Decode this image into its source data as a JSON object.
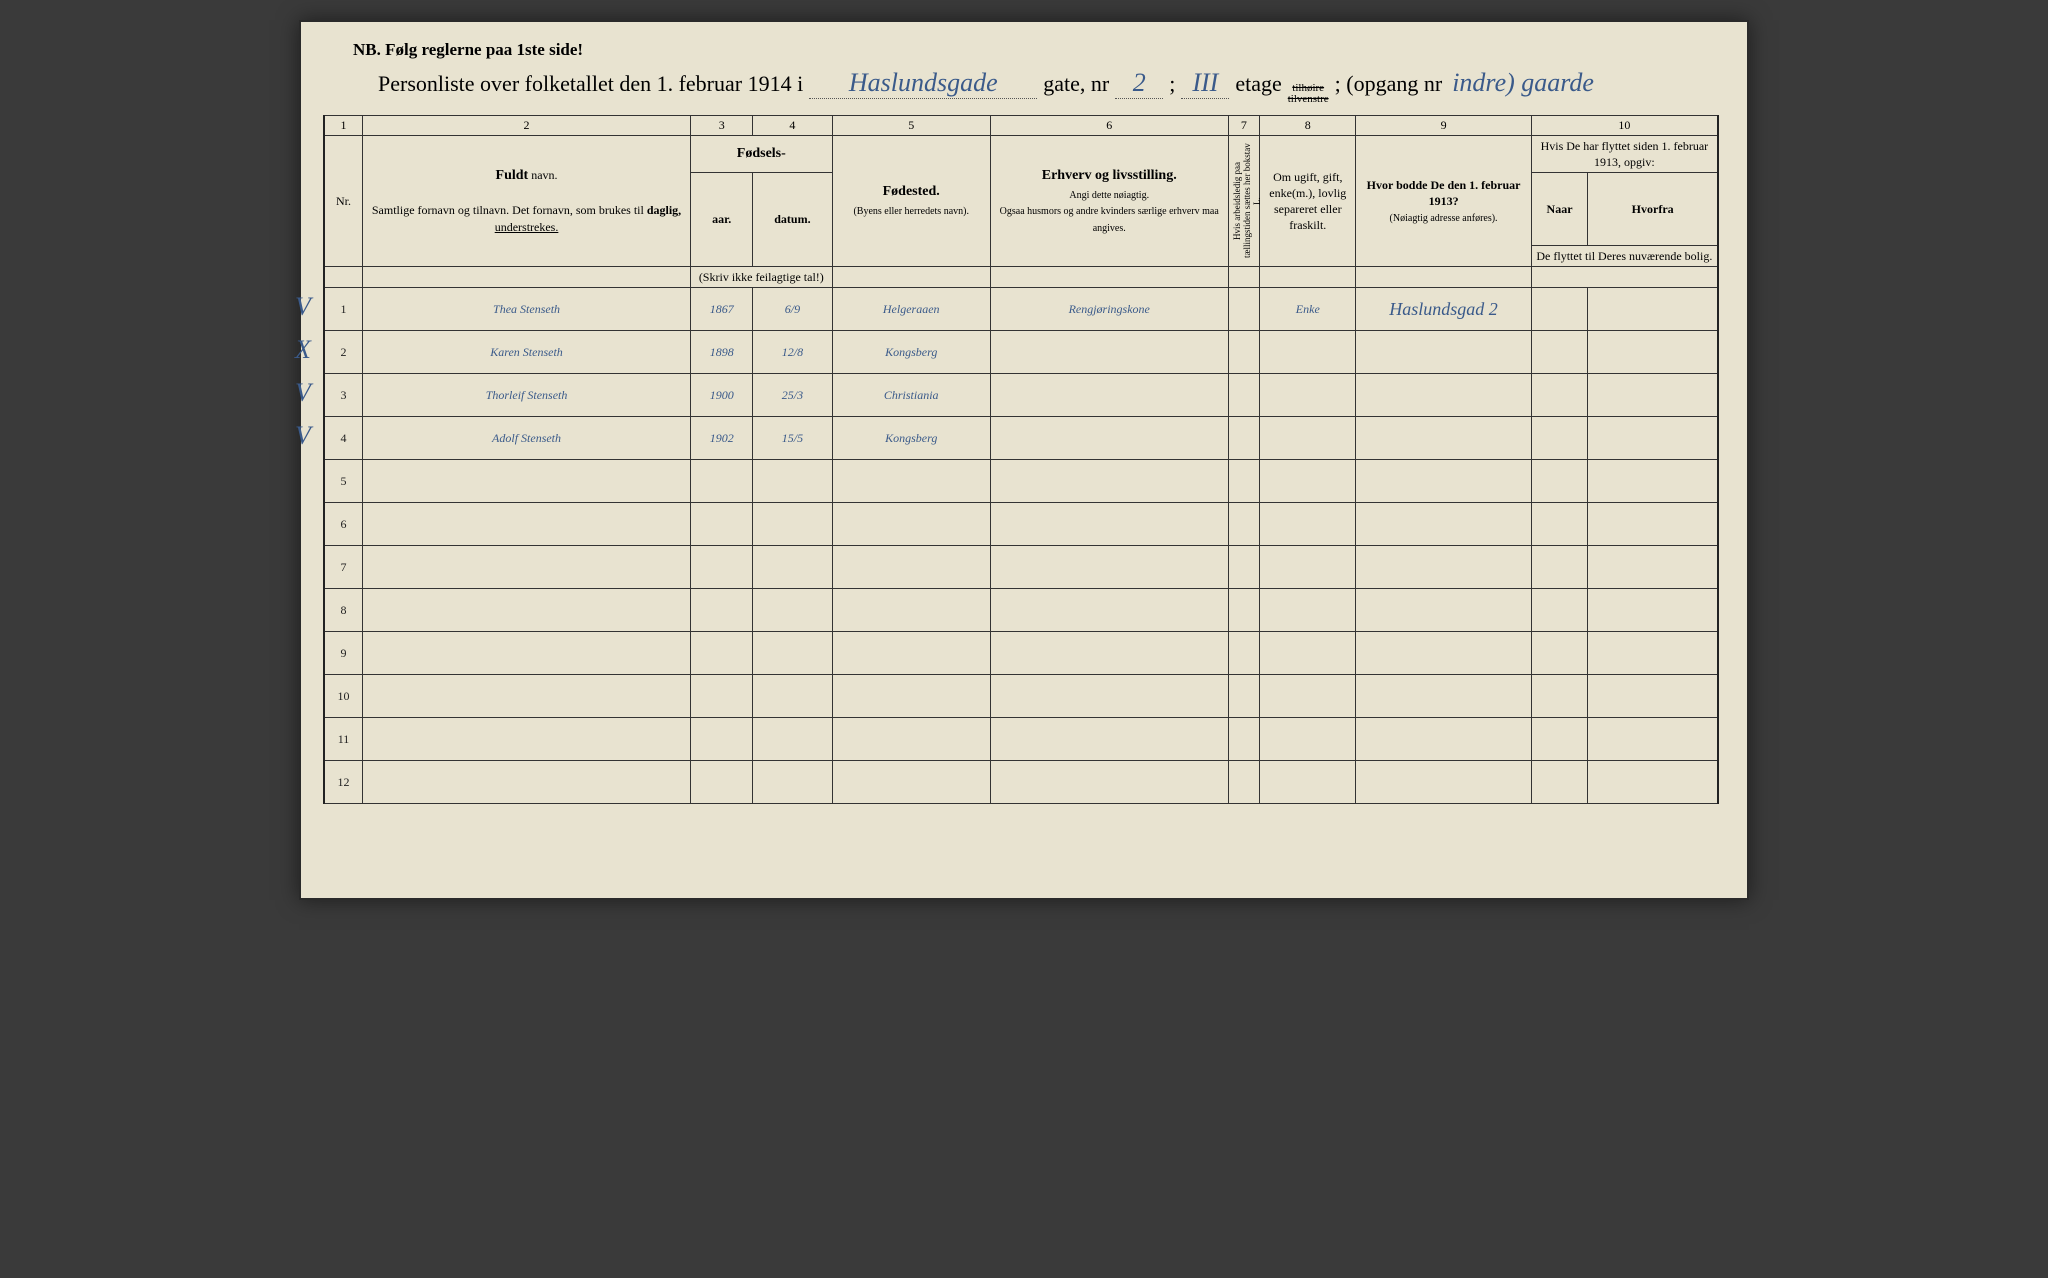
{
  "nb_line": "NB.   Følg reglerne paa 1ste side!",
  "title": {
    "prefix": "Personliste over folketallet den 1. februar 1914 i",
    "street_hw": "Haslundsgade",
    "gate_label": "gate, nr",
    "gate_nr_hw": "2",
    "semicolon": ";",
    "etage_hw": "III",
    "etage_label": "etage",
    "tilhoire": "tilhøire",
    "tilvenstre": "tilvenstre",
    "opgang_label": "; (opgang nr",
    "opgang_hw": "indre) gaarde",
    "close": ""
  },
  "column_numbers": [
    "1",
    "2",
    "3",
    "4",
    "5",
    "6",
    "7",
    "8",
    "9",
    "10"
  ],
  "headers": {
    "nr": "Nr.",
    "fuldt_navn_bold": "Fuldt",
    "fuldt_navn_rest": " navn.",
    "fuldt_sub": "Samtlige fornavn og tilnavn.  Det fornavn, som brukes til",
    "daglig": "daglig,",
    "understrekes": "understrekes.",
    "fodsels": "Fødsels-",
    "aar": "aar.",
    "datum": "datum.",
    "skriv_note": "(Skriv ikke feilagtige tal!)",
    "fodested_bold": "Fødested.",
    "fodested_sub": "(Byens eller herredets navn).",
    "erhverv_bold": "Erhverv og livsstilling.",
    "erhverv_sub1": "Angi dette nøiagtig.",
    "erhverv_sub2": "Ogsaa husmors og andre kvinders særlige erhverv maa angives.",
    "col7_vertical": "Hvis arbeidsledig paa tællingstiden sættes her bokstav L.",
    "col8": "Om ugift, gift, enke(m.), lovlig separeret eller fraskilt.",
    "col9_bold": "Hvor bodde De den 1. februar 1913?",
    "col9_sub": "(Nøiagtig adresse anføres).",
    "col10_top": "Hvis De har flyttet siden 1. februar 1913, opgiv:",
    "col10_naar": "Naar",
    "col10_hvorfra": "Hvorfra",
    "col10_sub": "De flyttet til Deres nuværende bolig."
  },
  "rows": [
    {
      "nr": "1",
      "mark": "V",
      "name": "Thea Stenseth",
      "year": "1867",
      "date": "6/9",
      "birthplace": "Helgeraaen",
      "occupation": "Rengjøringskone",
      "col7": "",
      "col8": "Enke",
      "col9": "Haslundsgad 2",
      "naar": "",
      "hvorfra": ""
    },
    {
      "nr": "2",
      "mark": "X",
      "name": "Karen Stenseth",
      "year": "1898",
      "date": "12/8",
      "birthplace": "Kongsberg",
      "occupation": "",
      "col7": "",
      "col8": "",
      "col9": "",
      "naar": "",
      "hvorfra": ""
    },
    {
      "nr": "3",
      "mark": "V",
      "name": "Thorleif Stenseth",
      "year": "1900",
      "date": "25/3",
      "birthplace": "Christiania",
      "occupation": "",
      "col7": "",
      "col8": "",
      "col9": "",
      "naar": "",
      "hvorfra": ""
    },
    {
      "nr": "4",
      "mark": "V",
      "name": "Adolf Stenseth",
      "year": "1902",
      "date": "15/5",
      "birthplace": "Kongsberg",
      "occupation": "",
      "col7": "",
      "col8": "",
      "col9": "",
      "naar": "",
      "hvorfra": ""
    },
    {
      "nr": "5",
      "mark": "",
      "name": "",
      "year": "",
      "date": "",
      "birthplace": "",
      "occupation": "",
      "col7": "",
      "col8": "",
      "col9": "",
      "naar": "",
      "hvorfra": ""
    },
    {
      "nr": "6",
      "mark": "",
      "name": "",
      "year": "",
      "date": "",
      "birthplace": "",
      "occupation": "",
      "col7": "",
      "col8": "",
      "col9": "",
      "naar": "",
      "hvorfra": ""
    },
    {
      "nr": "7",
      "mark": "",
      "name": "",
      "year": "",
      "date": "",
      "birthplace": "",
      "occupation": "",
      "col7": "",
      "col8": "",
      "col9": "",
      "naar": "",
      "hvorfra": ""
    },
    {
      "nr": "8",
      "mark": "",
      "name": "",
      "year": "",
      "date": "",
      "birthplace": "",
      "occupation": "",
      "col7": "",
      "col8": "",
      "col9": "",
      "naar": "",
      "hvorfra": ""
    },
    {
      "nr": "9",
      "mark": "",
      "name": "",
      "year": "",
      "date": "",
      "birthplace": "",
      "occupation": "",
      "col7": "",
      "col8": "",
      "col9": "",
      "naar": "",
      "hvorfra": ""
    },
    {
      "nr": "10",
      "mark": "",
      "name": "",
      "year": "",
      "date": "",
      "birthplace": "",
      "occupation": "",
      "col7": "",
      "col8": "",
      "col9": "",
      "naar": "",
      "hvorfra": ""
    },
    {
      "nr": "11",
      "mark": "",
      "name": "",
      "year": "",
      "date": "",
      "birthplace": "",
      "occupation": "",
      "col7": "",
      "col8": "",
      "col9": "",
      "naar": "",
      "hvorfra": ""
    },
    {
      "nr": "12",
      "mark": "",
      "name": "",
      "year": "",
      "date": "",
      "birthplace": "",
      "occupation": "",
      "col7": "",
      "col8": "",
      "col9": "",
      "naar": "",
      "hvorfra": ""
    }
  ],
  "colors": {
    "paper": "#e8e3d0",
    "ink_print": "#222222",
    "ink_handwritten": "#3a5a8a",
    "border": "#333333"
  }
}
